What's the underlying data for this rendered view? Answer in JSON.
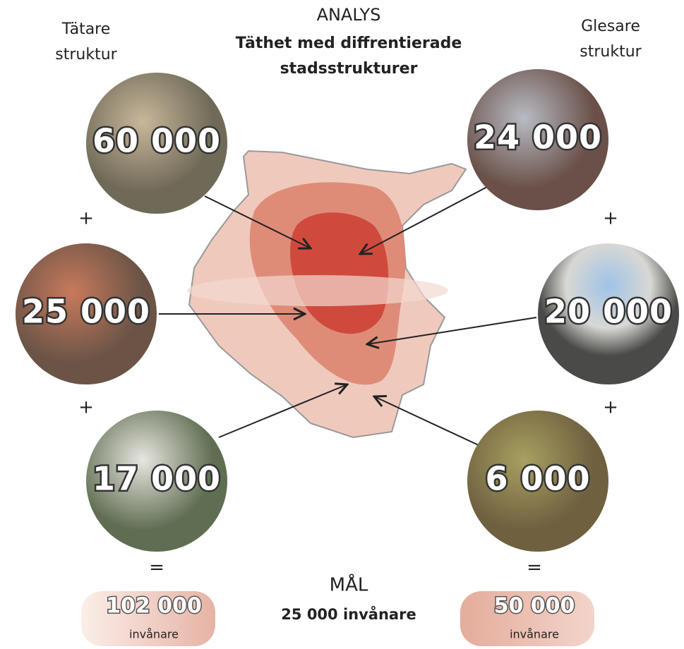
{
  "header": {
    "title": "ANALYS",
    "subtitle_lines": [
      "Täthet med diffrentierade",
      "stadsstrukturer"
    ]
  },
  "left": {
    "label_lines": [
      "Tätare",
      "struktur"
    ],
    "circles": [
      "60 000",
      "25 000",
      "17 000"
    ],
    "operators": [
      "+",
      "+",
      "="
    ],
    "total": "102 000",
    "unit": "invånare"
  },
  "right": {
    "label_lines": [
      "Glesare",
      "struktur"
    ],
    "circles": [
      "24 000",
      "20 000",
      "6 000"
    ],
    "operators": [
      "+",
      "+",
      "="
    ],
    "total": "50 000",
    "unit": "invånare"
  },
  "goal": {
    "title": "MÅL",
    "text": "25 000 invånare"
  }
}
